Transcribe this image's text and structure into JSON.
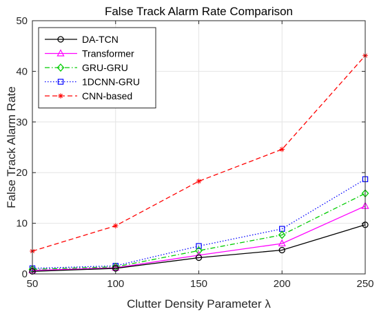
{
  "chart_data": {
    "type": "line",
    "title": "False Track Alarm Rate Comparison",
    "xlabel": "Clutter Density Parameter λ",
    "ylabel": "False Track Alarm Rate",
    "x": [
      50,
      100,
      150,
      200,
      250
    ],
    "xlim": [
      50,
      250
    ],
    "ylim": [
      0,
      50
    ],
    "xticks": [
      50,
      100,
      150,
      200,
      250
    ],
    "yticks": [
      0,
      10,
      20,
      30,
      40,
      50
    ],
    "grid": true,
    "legend_position": "top-left",
    "series": [
      {
        "name": "DA-TCN",
        "values": [
          0.5,
          1.1,
          3.2,
          4.7,
          9.7
        ],
        "color": "#000000",
        "dash": "solid",
        "marker": "circle"
      },
      {
        "name": "Transformer",
        "values": [
          0.7,
          1.2,
          3.7,
          6.0,
          13.4
        ],
        "color": "#ff00ff",
        "dash": "solid",
        "marker": "triangle"
      },
      {
        "name": "GRU-GRU",
        "values": [
          0.9,
          1.4,
          4.6,
          7.7,
          15.9
        ],
        "color": "#00cc00",
        "dash": "dashdot",
        "marker": "diamond"
      },
      {
        "name": "1DCNN-GRU",
        "values": [
          1.1,
          1.6,
          5.5,
          8.9,
          18.7
        ],
        "color": "#0000ff",
        "dash": "dotted",
        "marker": "square"
      },
      {
        "name": "CNN-based",
        "values": [
          4.5,
          9.5,
          18.3,
          24.6,
          43.1
        ],
        "color": "#ff0000",
        "dash": "dashed",
        "marker": "asterisk"
      }
    ]
  }
}
